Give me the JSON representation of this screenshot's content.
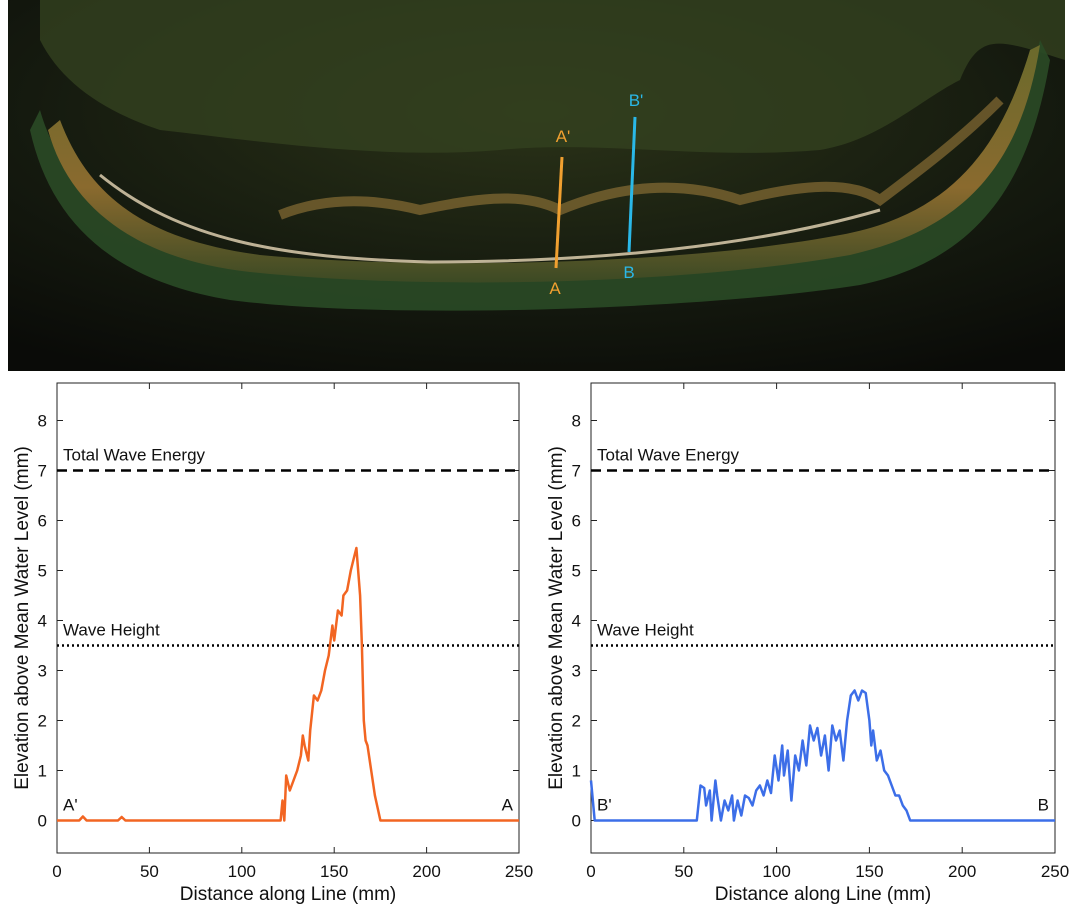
{
  "photo": {
    "labels": [
      "A'",
      "A",
      "B'",
      "B"
    ]
  },
  "chart_data": [
    {
      "type": "line",
      "xlabel": "Distance along Line (mm)",
      "ylabel": "Elevation above Mean Water Level (mm)",
      "xlim": [
        0,
        250
      ],
      "ylim": [
        -0.65,
        8.75
      ],
      "xticks": [
        0,
        50,
        100,
        150,
        200,
        250
      ],
      "yticks": [
        0,
        1,
        2,
        3,
        4,
        5,
        6,
        7,
        8
      ],
      "color": "#f26522",
      "annotations": [
        "A'",
        "A"
      ],
      "reference_lines": [
        {
          "value": 7,
          "label": "Total Wave Energy",
          "style": "dashed"
        },
        {
          "value": 3.5,
          "label": "Wave Height",
          "style": "dotted"
        }
      ],
      "x": [
        0,
        12,
        14,
        16,
        33,
        35,
        37,
        121,
        122,
        123,
        124,
        126,
        128,
        130,
        132,
        133,
        134,
        136,
        137,
        139,
        141,
        143,
        145,
        147,
        149,
        150,
        152,
        154,
        155,
        157,
        159,
        161,
        162,
        164,
        165,
        166,
        167,
        168,
        170,
        172,
        175,
        250
      ],
      "values": [
        0,
        0,
        0.08,
        0,
        0,
        0.07,
        0,
        0,
        0.4,
        0,
        0.9,
        0.6,
        0.8,
        1.0,
        1.3,
        1.7,
        1.5,
        1.2,
        1.8,
        2.5,
        2.4,
        2.6,
        3.0,
        3.3,
        3.9,
        3.6,
        4.2,
        4.1,
        4.5,
        4.6,
        5.0,
        5.3,
        5.45,
        4.5,
        3.5,
        2.0,
        1.6,
        1.5,
        1.0,
        0.5,
        0,
        0
      ]
    },
    {
      "type": "line",
      "xlabel": "Distance along Line (mm)",
      "ylabel": "Elevation above Mean Water Level (mm)",
      "xlim": [
        0,
        250
      ],
      "ylim": [
        -0.65,
        8.75
      ],
      "xticks": [
        0,
        50,
        100,
        150,
        200,
        250
      ],
      "yticks": [
        0,
        1,
        2,
        3,
        4,
        5,
        6,
        7,
        8
      ],
      "color": "#3c6ee8",
      "annotations": [
        "B'",
        "B"
      ],
      "reference_lines": [
        {
          "value": 7,
          "label": "Total Wave Energy",
          "style": "dashed"
        },
        {
          "value": 3.5,
          "label": "Wave Height",
          "style": "dotted"
        }
      ],
      "x": [
        0,
        2,
        57,
        59,
        61,
        62,
        64,
        65,
        67,
        68,
        70,
        72,
        74,
        76,
        77,
        79,
        81,
        83,
        85,
        87,
        89,
        91,
        93,
        95,
        97,
        99,
        101,
        103,
        104,
        106,
        108,
        110,
        112,
        114,
        116,
        118,
        120,
        122,
        124,
        126,
        128,
        130,
        132,
        134,
        136,
        138,
        140,
        142,
        144,
        146,
        148,
        150,
        151,
        152,
        154,
        156,
        158,
        160,
        162,
        164,
        166,
        168,
        170,
        172,
        250
      ],
      "values": [
        0.8,
        0,
        0,
        0.7,
        0.65,
        0.3,
        0.6,
        0,
        0.8,
        0.5,
        0,
        0.4,
        0.2,
        0.5,
        0,
        0.4,
        0.1,
        0.5,
        0.45,
        0.3,
        0.6,
        0.7,
        0.5,
        0.8,
        0.55,
        1.3,
        0.8,
        1.5,
        0.9,
        1.4,
        0.4,
        1.3,
        1.0,
        1.6,
        1.1,
        1.9,
        1.6,
        1.85,
        1.3,
        1.7,
        1.0,
        1.9,
        1.6,
        1.8,
        1.2,
        2.0,
        2.5,
        2.6,
        2.4,
        2.6,
        2.55,
        2.0,
        1.5,
        1.8,
        1.2,
        1.4,
        1.0,
        0.9,
        0.7,
        0.5,
        0.5,
        0.3,
        0.2,
        0,
        0
      ]
    }
  ]
}
